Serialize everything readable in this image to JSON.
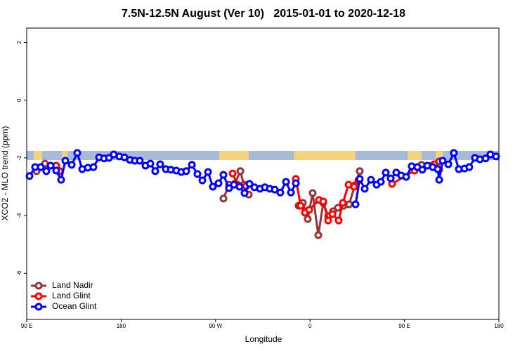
{
  "chart_data": {
    "type": "line",
    "title": "7.5N-12.5N August (Ver 10)   2015-01-01 to 2020-12-18",
    "xlabel": "Longitude",
    "ylabel": "XCO2 - MLO trend (ppm)",
    "xlim": [
      90,
      540
    ],
    "xticks": [
      {
        "value": 90,
        "label": "90 E"
      },
      {
        "value": 180,
        "label": "180"
      },
      {
        "value": 270,
        "label": "90 W"
      },
      {
        "value": 360,
        "label": "0"
      },
      {
        "value": 450,
        "label": "90 E"
      },
      {
        "value": 540,
        "label": "180"
      }
    ],
    "ylim": [
      -7.6,
      2.5
    ],
    "yticks": [
      2,
      0,
      -2,
      -4,
      -6
    ],
    "legend": "bottom-left",
    "series": [
      {
        "name": "Land Nadir",
        "color": "#993333",
        "x": [
          99.4,
          107.4,
          null,
          277.5,
          282.8,
          288.2,
          293.6,
          296.9,
          301.6,
          null,
          349.1,
          353.2,
          357.8,
          362.5,
          367.9,
          372.6,
          377.3,
          381.9,
          386.6,
          392.0,
          397.3,
          402.7,
          407.4,
          null,
          466.3,
          483.1
        ],
        "values": [
          -2.46,
          -2.2,
          null,
          -3.41,
          -2.93,
          -2.9,
          -2.46,
          -2.93,
          -3.27,
          null,
          -3.66,
          -3.56,
          -4.12,
          -3.22,
          -4.68,
          -3.56,
          -4.02,
          -3.85,
          -3.73,
          -3.66,
          -3.61,
          -2.95,
          -2.46,
          null,
          -2.24,
          -2.12
        ]
      },
      {
        "name": "Land Glint",
        "color": "#ff0000",
        "x": [
          118.1,
          121.5,
          null,
          286.2,
          290.9,
          299.0,
          null,
          346.5,
          351.1,
          355.2,
          359.2,
          368.6,
          372.6,
          377.3,
          381.3,
          387.3,
          391.3,
          396.7,
          402.0,
          406.1,
          null,
          438.2,
          459.6,
          478.4,
          483.1
        ],
        "values": [
          -2.27,
          -2.46,
          null,
          -2.54,
          -2.93,
          -2.98,
          null,
          -2.73,
          -3.66,
          -3.9,
          -3.8,
          -3.46,
          -3.51,
          -4.17,
          -3.95,
          -4.17,
          -3.56,
          -2.93,
          -3.0,
          -2.78,
          null,
          -2.9,
          -2.44,
          -2.22,
          -2.41
        ]
      },
      {
        "name": "Ocean Glint",
        "color": "#0000ff",
        "x": [
          92.7,
          98.0,
          103.4,
          108.7,
          112.8,
          118.1,
          122.8,
          126.8,
          132.9,
          138.2,
          142.9,
          148.3,
          153.6,
          159.0,
          163.7,
          168.4,
          173.0,
          178.4,
          183.1,
          188.4,
          193.1,
          197.8,
          203.2,
          207.8,
          212.5,
          217.2,
          222.6,
          227.3,
          232.6,
          237.3,
          242.0,
          247.4,
          252.7,
          257.4,
          262.8,
          267.4,
          272.8,
          277.5,
          282.8,
          287.5,
          292.9,
          297.6,
          302.3,
          307.0,
          312.3,
          317.0,
          321.7,
          326.4,
          331.7,
          337.1,
          341.8,
          346.5,
          null,
          403.4,
          407.4,
          412.1,
          418.1,
          423.5,
          427.5,
          432.2,
          436.9,
          442.2,
          446.9,
          451.6,
          456.9,
          462.3,
          467.0,
          471.7,
          477.0,
          481.7,
          483.1,
          486.4,
          491.8,
          497.1,
          501.8,
          507.2,
          511.8,
          517.2,
          521.9,
          527.3,
          531.9,
          537.3
        ],
        "values": [
          -2.63,
          -2.32,
          -2.32,
          -2.46,
          -2.27,
          -2.44,
          -2.76,
          -2.1,
          -2.24,
          -1.83,
          -2.39,
          -2.34,
          -2.32,
          -1.98,
          -2.02,
          -2.0,
          -1.88,
          -1.95,
          -1.98,
          -2.07,
          -2.1,
          -2.1,
          -2.27,
          -2.2,
          -2.46,
          -2.22,
          -2.39,
          -2.41,
          -2.44,
          -2.49,
          -2.46,
          -2.24,
          -2.56,
          -2.78,
          -2.49,
          -3.0,
          -2.88,
          -2.59,
          -3.05,
          -2.93,
          -3.0,
          -3.22,
          -2.9,
          -3.02,
          -3.07,
          -3.02,
          -3.07,
          -3.1,
          -3.2,
          -2.83,
          -3.2,
          -2.88,
          null,
          -3.61,
          -2.73,
          -3.07,
          -2.76,
          -2.93,
          -2.83,
          -2.51,
          -2.71,
          -2.51,
          -2.61,
          -2.66,
          -2.29,
          -2.32,
          -2.41,
          -2.27,
          -2.32,
          -2.39,
          -2.76,
          -2.1,
          -2.22,
          -1.83,
          -2.39,
          -2.37,
          -2.32,
          -2.0,
          -2.05,
          -2.02,
          -1.88,
          -1.95
        ]
      }
    ]
  }
}
